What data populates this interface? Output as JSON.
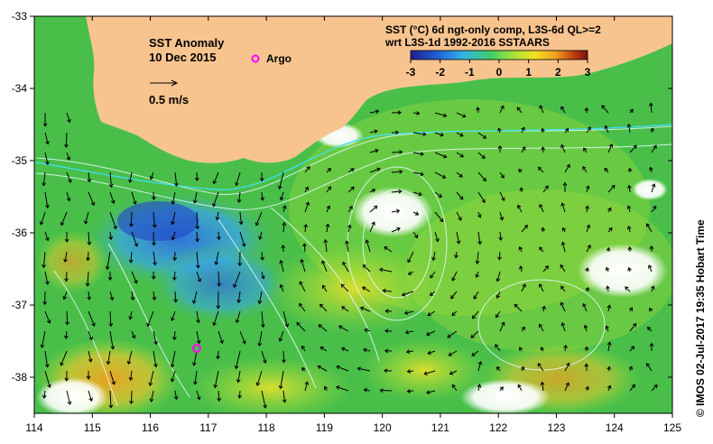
{
  "map": {
    "title_line1": "SST Anomaly",
    "title_line2": "10 Dec 2015",
    "argo_label": "Argo",
    "argo_position": {
      "lon": 116.8,
      "lat": -37.6
    },
    "argo_color": "#ff00ff",
    "vector_scale_label": "0.5 m/s",
    "colorbar_title_line1": "SST (°C) 6d ngt-only comp, L3S-6d QL>=2",
    "colorbar_title_line2": "wrt L3S-1d 1992-2016 SSTAARS",
    "colorbar_ticks": [
      "-3",
      "-2",
      "-1",
      "0",
      "1",
      "2",
      "3"
    ],
    "colorbar_colors": [
      "#20208c",
      "#1f5fd6",
      "#33b5e5",
      "#3fcf6a",
      "#a8e23a",
      "#f2e21f",
      "#f0a020",
      "#c04010",
      "#7a1010"
    ],
    "side_label": "© IMOS 02-Jul-2017 19:35 Hobart Time",
    "lon_ticks": [
      "114",
      "115",
      "116",
      "117",
      "118",
      "119",
      "120",
      "121",
      "122",
      "123",
      "124",
      "125"
    ],
    "lat_ticks": [
      "-33",
      "-34",
      "-35",
      "-36",
      "-37",
      "-38"
    ],
    "land_color": "#f7c48f",
    "ocean_base_color": "#4ec24a"
  },
  "chart_data": {
    "type": "heatmap",
    "title": "SST Anomaly",
    "date": "10 Dec 2015",
    "colorbar_range": [
      -3,
      3
    ],
    "lon_range": [
      114,
      125
    ],
    "lat_range": [
      -38.5,
      -33
    ],
    "legend": [
      "Argo",
      "0.5 m/s"
    ]
  }
}
